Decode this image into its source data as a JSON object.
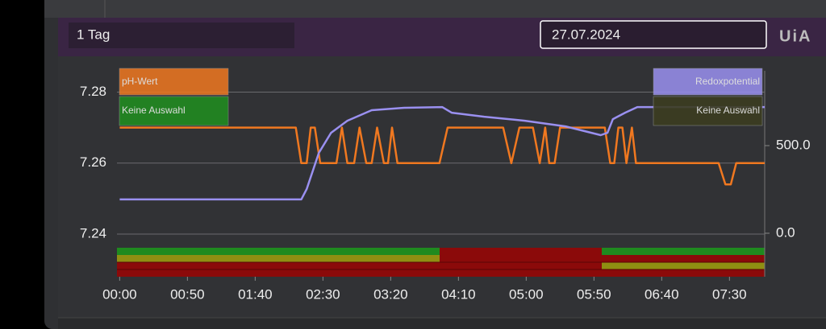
{
  "header": {
    "range": "1 Tag",
    "date": "27.07.2024",
    "logo": "UiA"
  },
  "chart_data": {
    "type": "line",
    "xlim": [
      -2,
      476
    ],
    "xticks": [
      {
        "value": 0,
        "label": "00:00"
      },
      {
        "value": 50,
        "label": "00:50"
      },
      {
        "value": 100,
        "label": "01:40"
      },
      {
        "value": 150,
        "label": "02:30"
      },
      {
        "value": 200,
        "label": "03:20"
      },
      {
        "value": 250,
        "label": "04:10"
      },
      {
        "value": 300,
        "label": "05:00"
      },
      {
        "value": 350,
        "label": "05:50"
      },
      {
        "value": 400,
        "label": "06:40"
      },
      {
        "value": 450,
        "label": "07:30"
      }
    ],
    "ylim": [
      7.228,
      7.286
    ],
    "yticks": [
      7.28,
      7.26,
      7.24
    ],
    "y2lim": [
      -248,
      927
    ],
    "y2ticks": [
      {
        "value": 500,
        "label": "500.0"
      },
      {
        "value": 0,
        "label": "0.0"
      }
    ],
    "grid": true,
    "series": [
      {
        "name": "pH-Wert",
        "selection": "Keine Auswahl",
        "color": "#f07820",
        "x": [
          0,
          126,
          130,
          134,
          138,
          141,
          144,
          148,
          160,
          164,
          168,
          173,
          177,
          182,
          186,
          190,
          195,
          198,
          201,
          205,
          236,
          242,
          283,
          289,
          295,
          305,
          310,
          314,
          317,
          321,
          325,
          358,
          362,
          365,
          368,
          371,
          374,
          378,
          381,
          386,
          442,
          447,
          451,
          455,
          459,
          476
        ],
        "values": [
          7.27,
          7.27,
          7.27,
          7.26,
          7.26,
          7.27,
          7.27,
          7.26,
          7.26,
          7.27,
          7.26,
          7.26,
          7.27,
          7.26,
          7.26,
          7.27,
          7.26,
          7.26,
          7.27,
          7.26,
          7.26,
          7.27,
          7.27,
          7.26,
          7.27,
          7.27,
          7.26,
          7.27,
          7.26,
          7.26,
          7.27,
          7.27,
          7.26,
          7.26,
          7.27,
          7.27,
          7.26,
          7.27,
          7.26,
          7.26,
          7.26,
          7.254,
          7.254,
          7.26,
          7.26,
          7.26
        ]
      },
      {
        "name": "Redoxpotential",
        "selection": "Keine Auswahl",
        "color": "#9a90f0",
        "axis": "y2",
        "x": [
          0,
          134,
          138,
          147,
          156,
          168,
          186,
          210,
          238,
          245,
          269,
          299,
          329,
          355,
          360,
          364,
          373,
          382,
          476
        ],
        "values": [
          193,
          193,
          252,
          459,
          573,
          642,
          702,
          716,
          720,
          688,
          665,
          642,
          610,
          560,
          573,
          651,
          688,
          720,
          720
        ]
      }
    ]
  }
}
